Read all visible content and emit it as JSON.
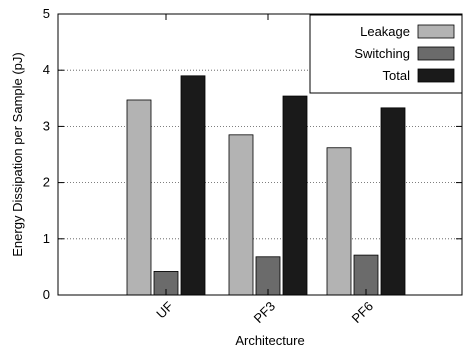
{
  "chart_data": {
    "type": "bar",
    "categories": [
      "UF",
      "PF3",
      "PF6"
    ],
    "series": [
      {
        "name": "Leakage",
        "color": "#b3b3b3",
        "values": [
          3.47,
          2.85,
          2.62
        ]
      },
      {
        "name": "Switching",
        "color": "#6b6b6b",
        "values": [
          0.42,
          0.68,
          0.71
        ]
      },
      {
        "name": "Total",
        "color": "#1a1a1a",
        "values": [
          3.9,
          3.54,
          3.33
        ]
      }
    ],
    "title": "",
    "xlabel": "Architecture",
    "ylabel": "Energy Dissipation per Sample (pJ)",
    "ylim": [
      0,
      5
    ],
    "yticks": [
      0,
      1,
      2,
      3,
      4,
      5
    ],
    "grid": "horizontal-dotted",
    "legend_position": "top-right"
  }
}
